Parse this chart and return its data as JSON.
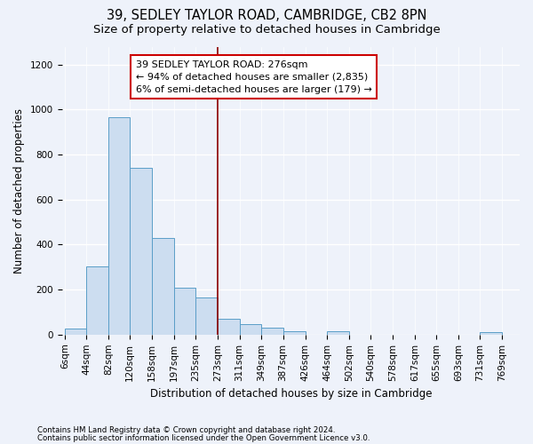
{
  "title": "39, SEDLEY TAYLOR ROAD, CAMBRIDGE, CB2 8PN",
  "subtitle": "Size of property relative to detached houses in Cambridge",
  "xlabel": "Distribution of detached houses by size in Cambridge",
  "ylabel": "Number of detached properties",
  "footnote1": "Contains HM Land Registry data © Crown copyright and database right 2024.",
  "footnote2": "Contains public sector information licensed under the Open Government Licence v3.0.",
  "bin_edges": [
    6,
    44,
    82,
    120,
    158,
    197,
    235,
    273,
    311,
    349,
    387,
    426,
    464,
    502,
    540,
    578,
    617,
    655,
    693,
    731,
    769
  ],
  "tick_labels": [
    "6sqm",
    "44sqm",
    "82sqm",
    "120sqm",
    "158sqm",
    "197sqm",
    "235sqm",
    "273sqm",
    "311sqm",
    "349sqm",
    "387sqm",
    "426sqm",
    "464sqm",
    "502sqm",
    "540sqm",
    "578sqm",
    "617sqm",
    "655sqm",
    "693sqm",
    "731sqm",
    "769sqm"
  ],
  "bar_heights": [
    25,
    305,
    965,
    743,
    430,
    210,
    165,
    70,
    48,
    30,
    15,
    0,
    15,
    0,
    0,
    0,
    0,
    0,
    0,
    10
  ],
  "bar_face_color": "#ccddf0",
  "bar_edge_color": "#5a9ec8",
  "vline_x": 273,
  "vline_color": "#8b0000",
  "annotation_text": "39 SEDLEY TAYLOR ROAD: 276sqm\n← 94% of detached houses are smaller (2,835)\n6% of semi-detached houses are larger (179) →",
  "annotation_border_color": "#cc0000",
  "ylim": [
    0,
    1280
  ],
  "xlim_left": 1,
  "xlim_right": 800,
  "background_color": "#eef2fa",
  "grid_color": "#ffffff",
  "title_fontsize": 10.5,
  "subtitle_fontsize": 9.5,
  "axis_label_fontsize": 8.5,
  "tick_fontsize": 7.5,
  "annotation_fontsize": 8,
  "yticks": [
    0,
    200,
    400,
    600,
    800,
    1000,
    1200
  ]
}
